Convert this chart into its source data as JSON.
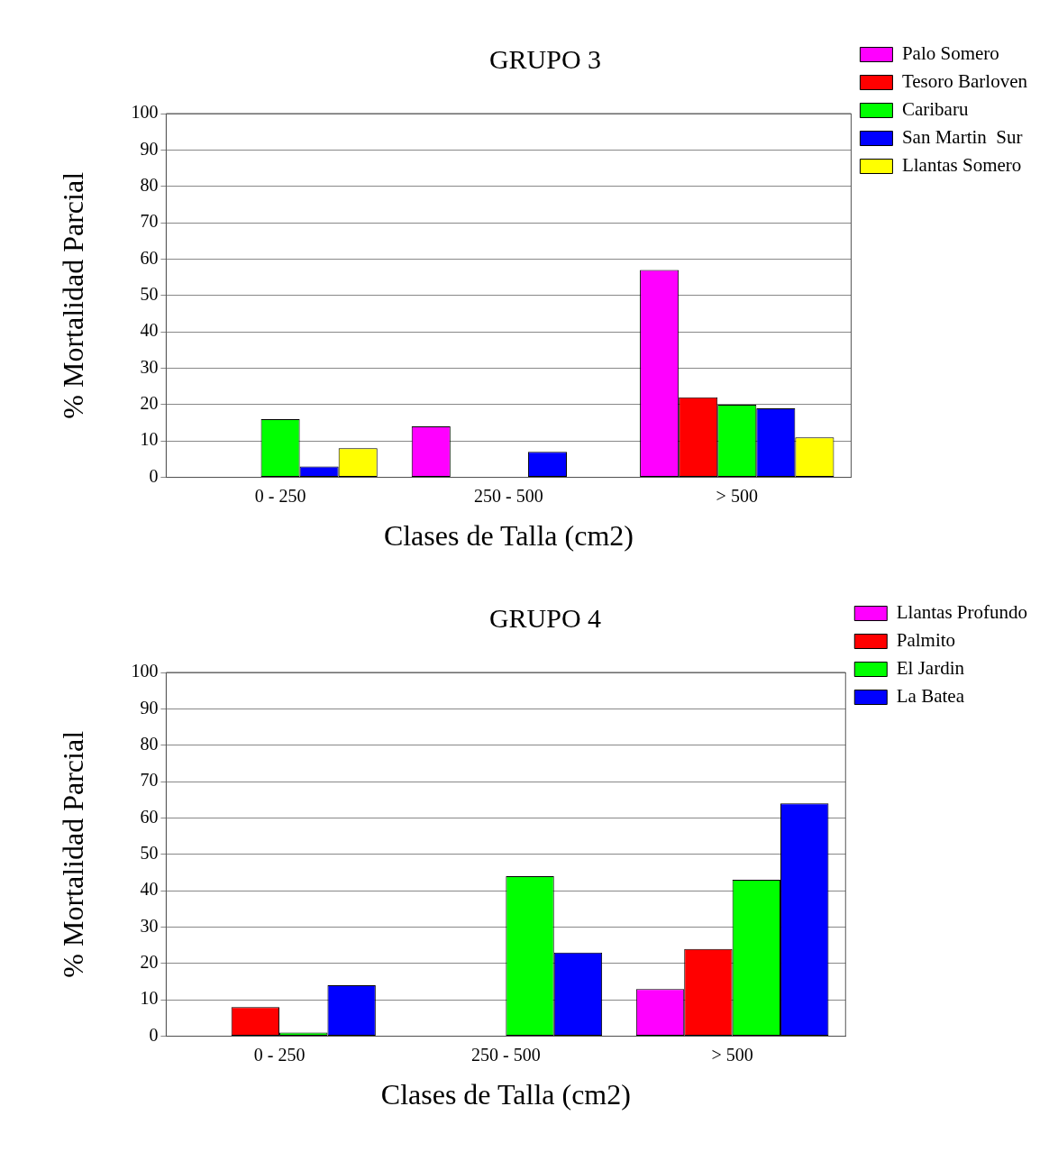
{
  "chart_data": [
    {
      "type": "bar",
      "title": "GRUPO 3",
      "xlabel": "Clases de Talla (cm2)",
      "ylabel": "% Mortalidad Parcial",
      "categories": [
        "0 - 250",
        "250 - 500",
        "> 500"
      ],
      "series": [
        {
          "name": "Palo Somero",
          "color": "#ff00ff",
          "values": [
            0,
            14,
            57
          ]
        },
        {
          "name": "Tesoro Barloven",
          "color": "#ff0000",
          "values": [
            0,
            0,
            22
          ]
        },
        {
          "name": "Caribaru",
          "color": "#00ff00",
          "values": [
            16,
            0,
            20
          ]
        },
        {
          "name": "San Martin  Sur",
          "color": "#0000ff",
          "values": [
            3,
            7,
            19
          ]
        },
        {
          "name": "Llantas Somero",
          "color": "#ffff00",
          "values": [
            8,
            0,
            11
          ]
        }
      ],
      "ylim": [
        0,
        100
      ],
      "yticks": [
        0,
        10,
        20,
        30,
        40,
        50,
        60,
        70,
        80,
        90,
        100
      ],
      "grid": "y",
      "legend": "right"
    },
    {
      "type": "bar",
      "title": "GRUPO 4",
      "xlabel": "Clases de Talla (cm2)",
      "ylabel": "% Mortalidad Parcial",
      "categories": [
        "0 - 250",
        "250 - 500",
        "> 500"
      ],
      "series": [
        {
          "name": "Llantas Profundo",
          "color": "#ff00ff",
          "values": [
            0,
            0,
            13
          ]
        },
        {
          "name": "Palmito",
          "color": "#ff0000",
          "values": [
            8,
            0,
            24
          ]
        },
        {
          "name": "El Jardin",
          "color": "#00ff00",
          "values": [
            1,
            44,
            43
          ]
        },
        {
          "name": "La Batea",
          "color": "#0000ff",
          "values": [
            14,
            23,
            64
          ]
        }
      ],
      "ylim": [
        0,
        100
      ],
      "yticks": [
        0,
        10,
        20,
        30,
        40,
        50,
        60,
        70,
        80,
        90,
        100
      ],
      "grid": "y",
      "legend": "right"
    }
  ]
}
